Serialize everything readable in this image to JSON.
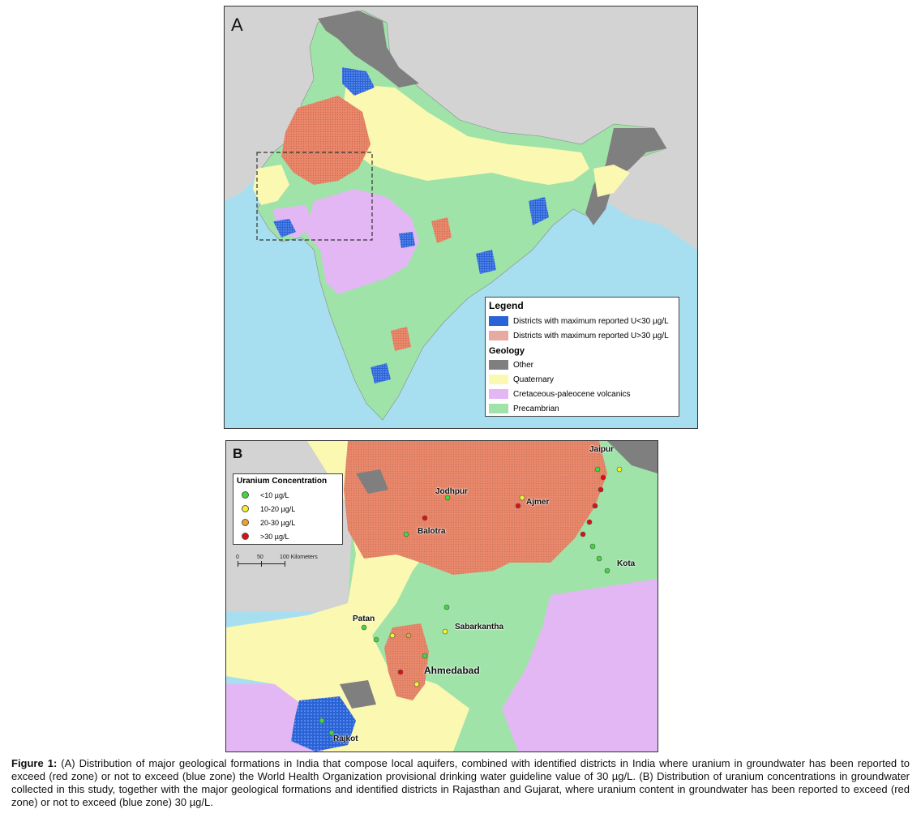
{
  "colors": {
    "water": "#a8dff0",
    "other": "#7f7f7f",
    "quaternary": "#fbf8b2",
    "volcanics": "#e3b7f3",
    "precambrian": "#9fe3a9",
    "red_zone": "#e8876a",
    "blue_zone": "#2a63d6",
    "land_outside": "#d3d3d3"
  },
  "panel_a": {
    "letter": "A",
    "legend": {
      "title": "Legend",
      "items": [
        {
          "label": "Districts with maximum reported U<30 µg/L",
          "color": "#2a63d6"
        },
        {
          "label": "Districts with maximum reported U>30 µg/L",
          "color": "#e8a9a0"
        }
      ],
      "geology_title": "Geology",
      "geology": [
        {
          "label": "Other",
          "color": "#7f7f7f"
        },
        {
          "label": "Quaternary",
          "color": "#fbf8b2"
        },
        {
          "label": "Cretaceous-paleocene volcanics",
          "color": "#e3b7f3"
        },
        {
          "label": "Precambrian",
          "color": "#9fe3a9"
        }
      ]
    }
  },
  "panel_b": {
    "letter": "B",
    "legend": {
      "title": "Uranium Concentration",
      "items": [
        {
          "label": "<10 µg/L",
          "color": "#3fd93a"
        },
        {
          "label": "10-20 µg/L",
          "color": "#f2f230"
        },
        {
          "label": "20-30 µg/L",
          "color": "#f0a030"
        },
        {
          "label": ">30 µg/L",
          "color": "#dd1010"
        }
      ]
    },
    "scale": {
      "labels": [
        "0",
        "50",
        "100 Kilometers"
      ]
    },
    "cities": [
      "Jaipur",
      "Jodhpur",
      "Ajmer",
      "Balotra",
      "Kota",
      "Patan",
      "Sabarkantha",
      "Ahmedabad",
      "Rajkot"
    ]
  },
  "caption": {
    "label": "Figure 1:",
    "text": " (A) Distribution of major geological formations in India that compose local aquifers, combined with identified districts in India where uranium in groundwater has been reported to exceed (red zone) or not to exceed (blue zone) the World Health Organization provisional drinking water guideline value of 30 µg/L. (B) Distribution of uranium concentrations in groundwater collected in this study, together with the major geological formations and identified districts in Rajasthan and Gujarat, where uranium content in groundwater has been reported to exceed (red zone) or not to exceed (blue zone) 30 µg/L."
  }
}
